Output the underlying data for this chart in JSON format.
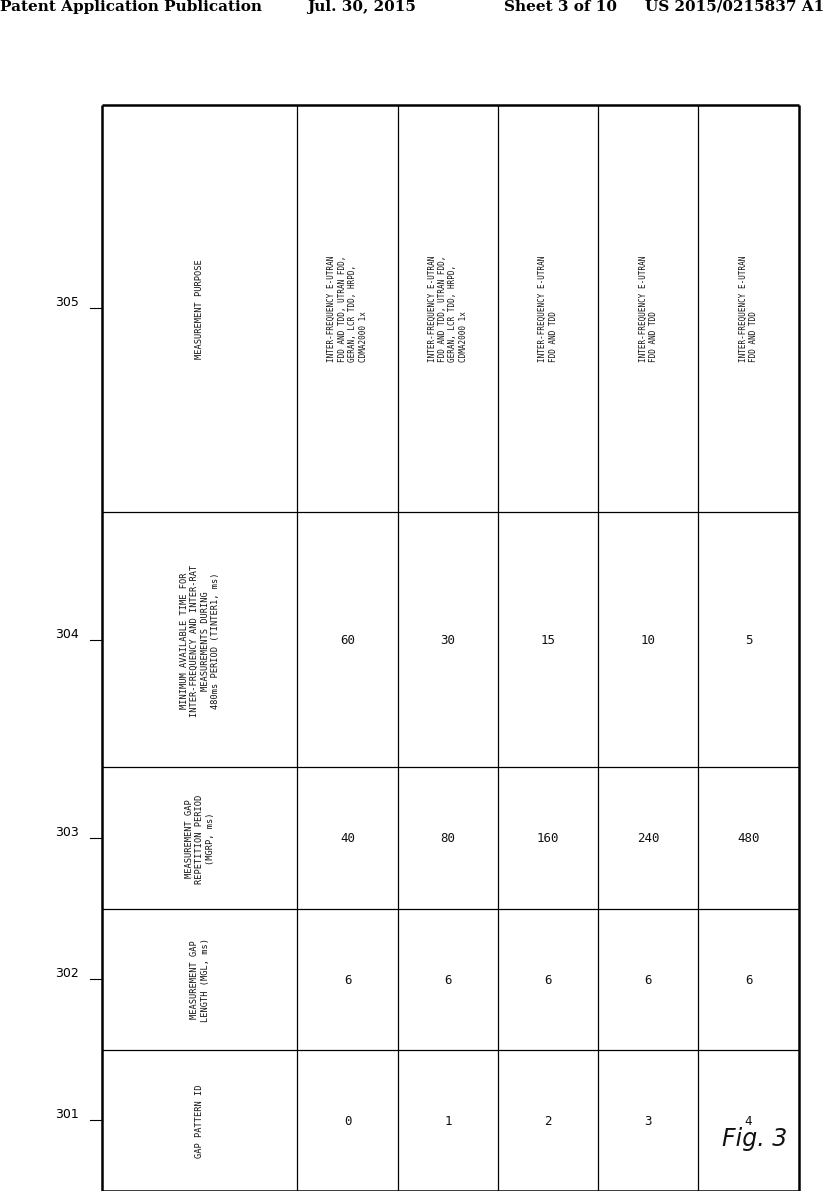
{
  "header_line1": "Patent Application Publication",
  "header_date": "Jul. 30, 2015",
  "header_sheet": "Sheet 3 of 10",
  "header_patent": "US 2015/0215837 A1",
  "fig_label": "Fig. 3",
  "background_color": "#ffffff",
  "line_color": "#000000",
  "rows": [
    {
      "ref": "305",
      "header": "MEASUREMENT PURPOSE",
      "cells": [
        "INTER-FREQUENCY E-UTRAN\nFDD AND TDD, UTRAN FDD,\nGERAN, LCR TDD, HRPD,\nCDMA2000 1x",
        "INTER-FREQUENCY E-UTRAN\nFDD AND TDD, UTRAN FDD,\nGERAN, LCR TDD, HRPD,\nCDMA2000 1x",
        "INTER-FREQUENCY E-UTRAN\nFDD AND TDD",
        "INTER-FREQUENCY E-UTRAN\nFDD AND TDD",
        "INTER-FREQUENCY E-UTRAN\nFDD AND TDD"
      ]
    },
    {
      "ref": "304",
      "header": "MINIMUM AVAILABLE TIME FOR\nINTER-FREQUENCY AND INTER-RAT\nMEASUREMENTS DURING\n480ms PERIOD (TINTER1, ms)",
      "cells": [
        "60",
        "30",
        "15",
        "10",
        "5"
      ]
    },
    {
      "ref": "303",
      "header": "MEASUREMENT GAP\nREPETITION PERIOD\n(MGRP, ms)",
      "cells": [
        "40",
        "80",
        "160",
        "240",
        "480"
      ]
    },
    {
      "ref": "302",
      "header": "MEASUREMENT GAP\nLENGTH (MGL, ms)",
      "cells": [
        "6",
        "6",
        "6",
        "6",
        "6"
      ]
    },
    {
      "ref": "301",
      "header": "GAP PATTERN ID",
      "cells": [
        "0",
        "1",
        "2",
        "3",
        "4"
      ]
    }
  ]
}
